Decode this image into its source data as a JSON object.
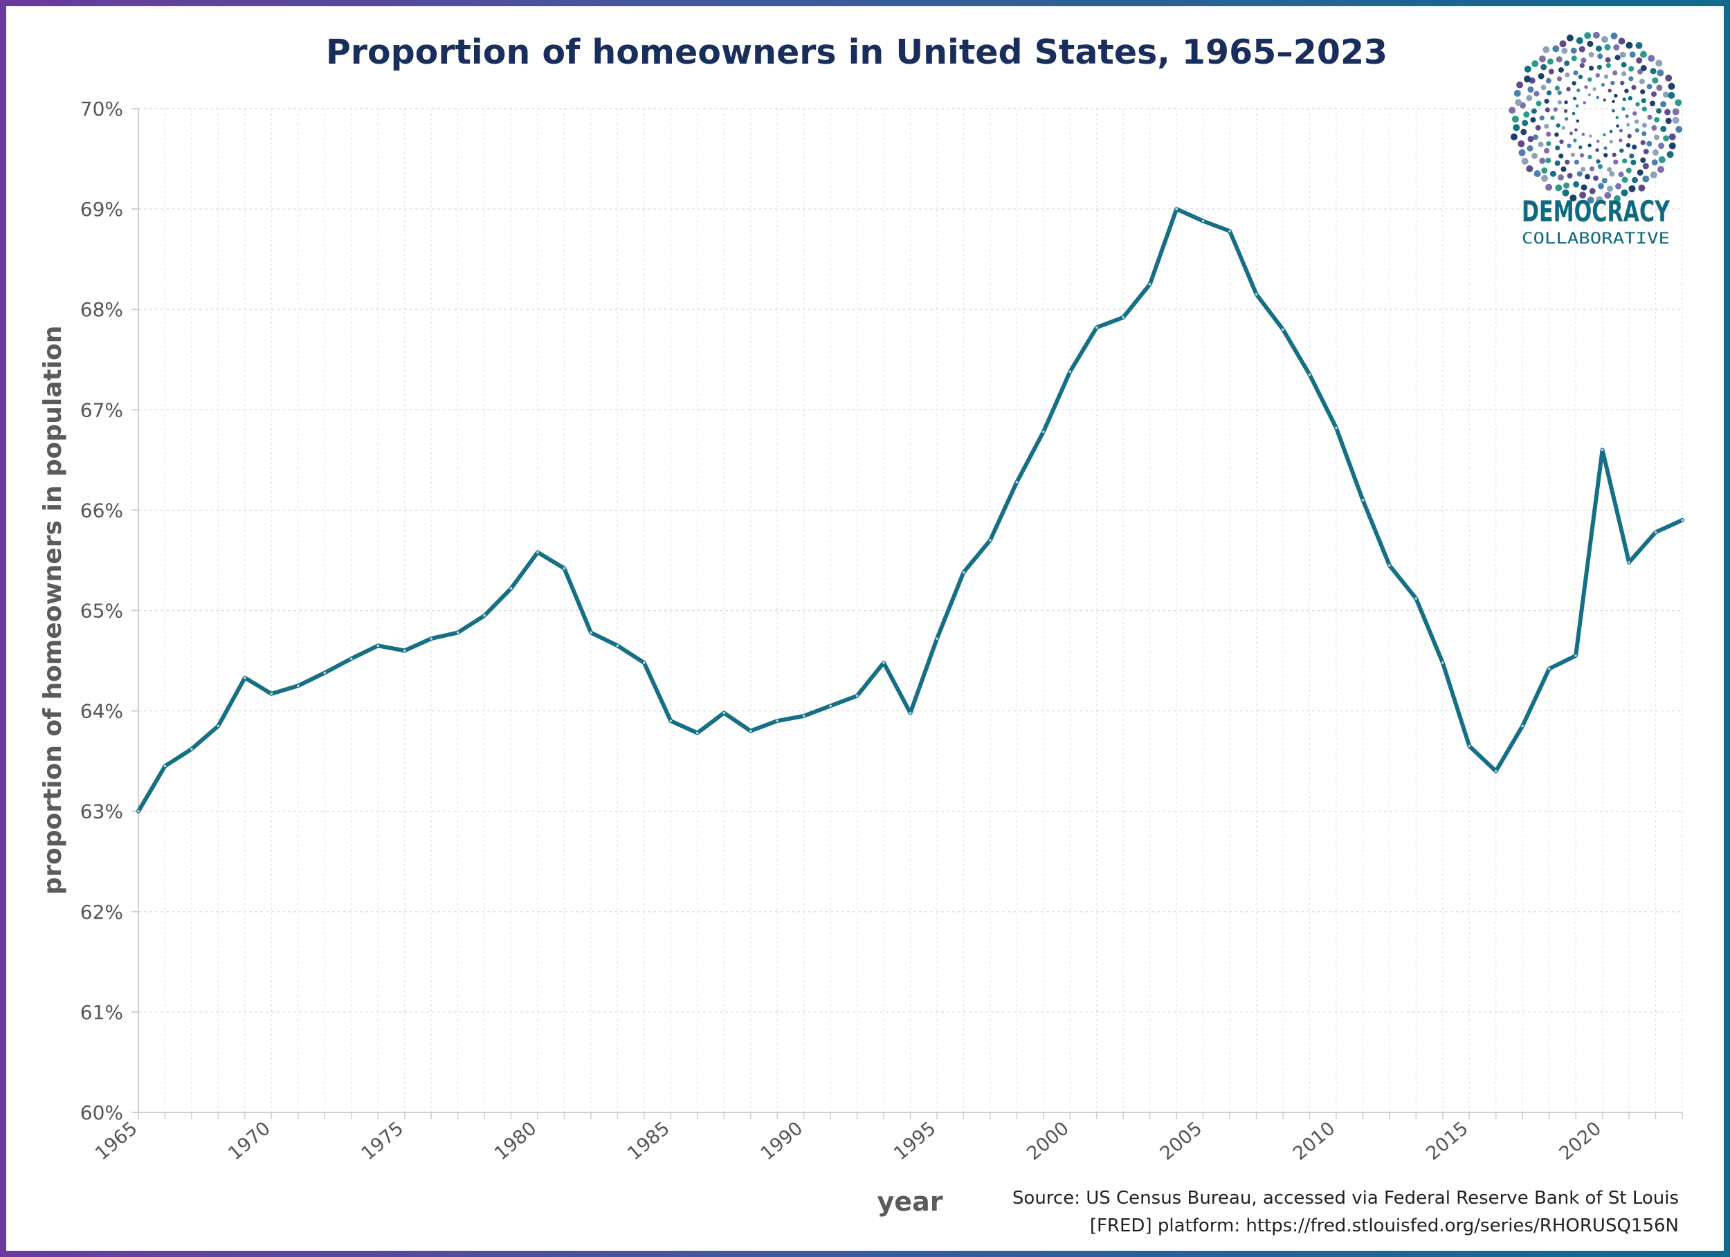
{
  "chart_data": {
    "type": "line",
    "title": "Proportion of homeowners in United States, 1965–2023",
    "xlabel": "year",
    "ylabel": "proportion of homeowners in population",
    "xlim": [
      1965,
      2023
    ],
    "ylim": [
      60,
      70
    ],
    "grid": true,
    "x_ticks": [
      "1965",
      "1970",
      "1975",
      "1980",
      "1985",
      "1990",
      "1995",
      "2000",
      "2005",
      "2010",
      "2015",
      "2020"
    ],
    "y_ticks": [
      "60%",
      "61%",
      "62%",
      "63%",
      "64%",
      "65%",
      "66%",
      "67%",
      "68%",
      "69%",
      "70%"
    ],
    "series": [
      {
        "color": "#156f85",
        "x": [
          1965,
          1966,
          1967,
          1968,
          1969,
          1970,
          1971,
          1972,
          1973,
          1974,
          1975,
          1976,
          1977,
          1978,
          1979,
          1980,
          1981,
          1982,
          1983,
          1984,
          1985,
          1986,
          1987,
          1988,
          1989,
          1990,
          1991,
          1992,
          1993,
          1994,
          1995,
          1996,
          1997,
          1998,
          1999,
          2000,
          2001,
          2002,
          2003,
          2004,
          2005,
          2006,
          2007,
          2008,
          2009,
          2010,
          2011,
          2012,
          2013,
          2014,
          2015,
          2016,
          2017,
          2018,
          2019,
          2020,
          2021,
          2022,
          2023
        ],
        "y": [
          63.0,
          63.45,
          63.62,
          63.85,
          64.33,
          64.17,
          64.25,
          64.38,
          64.52,
          64.65,
          64.6,
          64.72,
          64.78,
          64.95,
          65.22,
          65.58,
          65.42,
          64.78,
          64.65,
          64.48,
          63.9,
          63.78,
          63.98,
          63.8,
          63.9,
          63.95,
          64.05,
          64.15,
          64.48,
          63.98,
          64.72,
          65.38,
          65.7,
          66.28,
          66.78,
          67.38,
          67.82,
          67.92,
          68.25,
          69.0,
          68.88,
          68.78,
          68.15,
          67.8,
          67.35,
          66.82,
          66.1,
          65.45,
          65.12,
          64.48,
          63.65,
          63.4,
          63.85,
          64.42,
          64.55,
          66.6,
          65.48,
          65.78,
          65.9
        ]
      }
    ],
    "source_lines": [
      "Source: US Census Bureau, accessed via Federal Reserve Bank of St Louis",
      "[FRED] platform: https://fred.stlouisfed.org/series/RHORUSQ156N"
    ]
  },
  "logo": {
    "name": "DEMOCRACY",
    "subname": "COLLABORATIVE",
    "dot_colors": [
      "#1d3f6e",
      "#156f85",
      "#2a9a8c",
      "#7b6fae",
      "#8fa3b8",
      "#4a7fb0",
      "#5d4b8c"
    ]
  }
}
